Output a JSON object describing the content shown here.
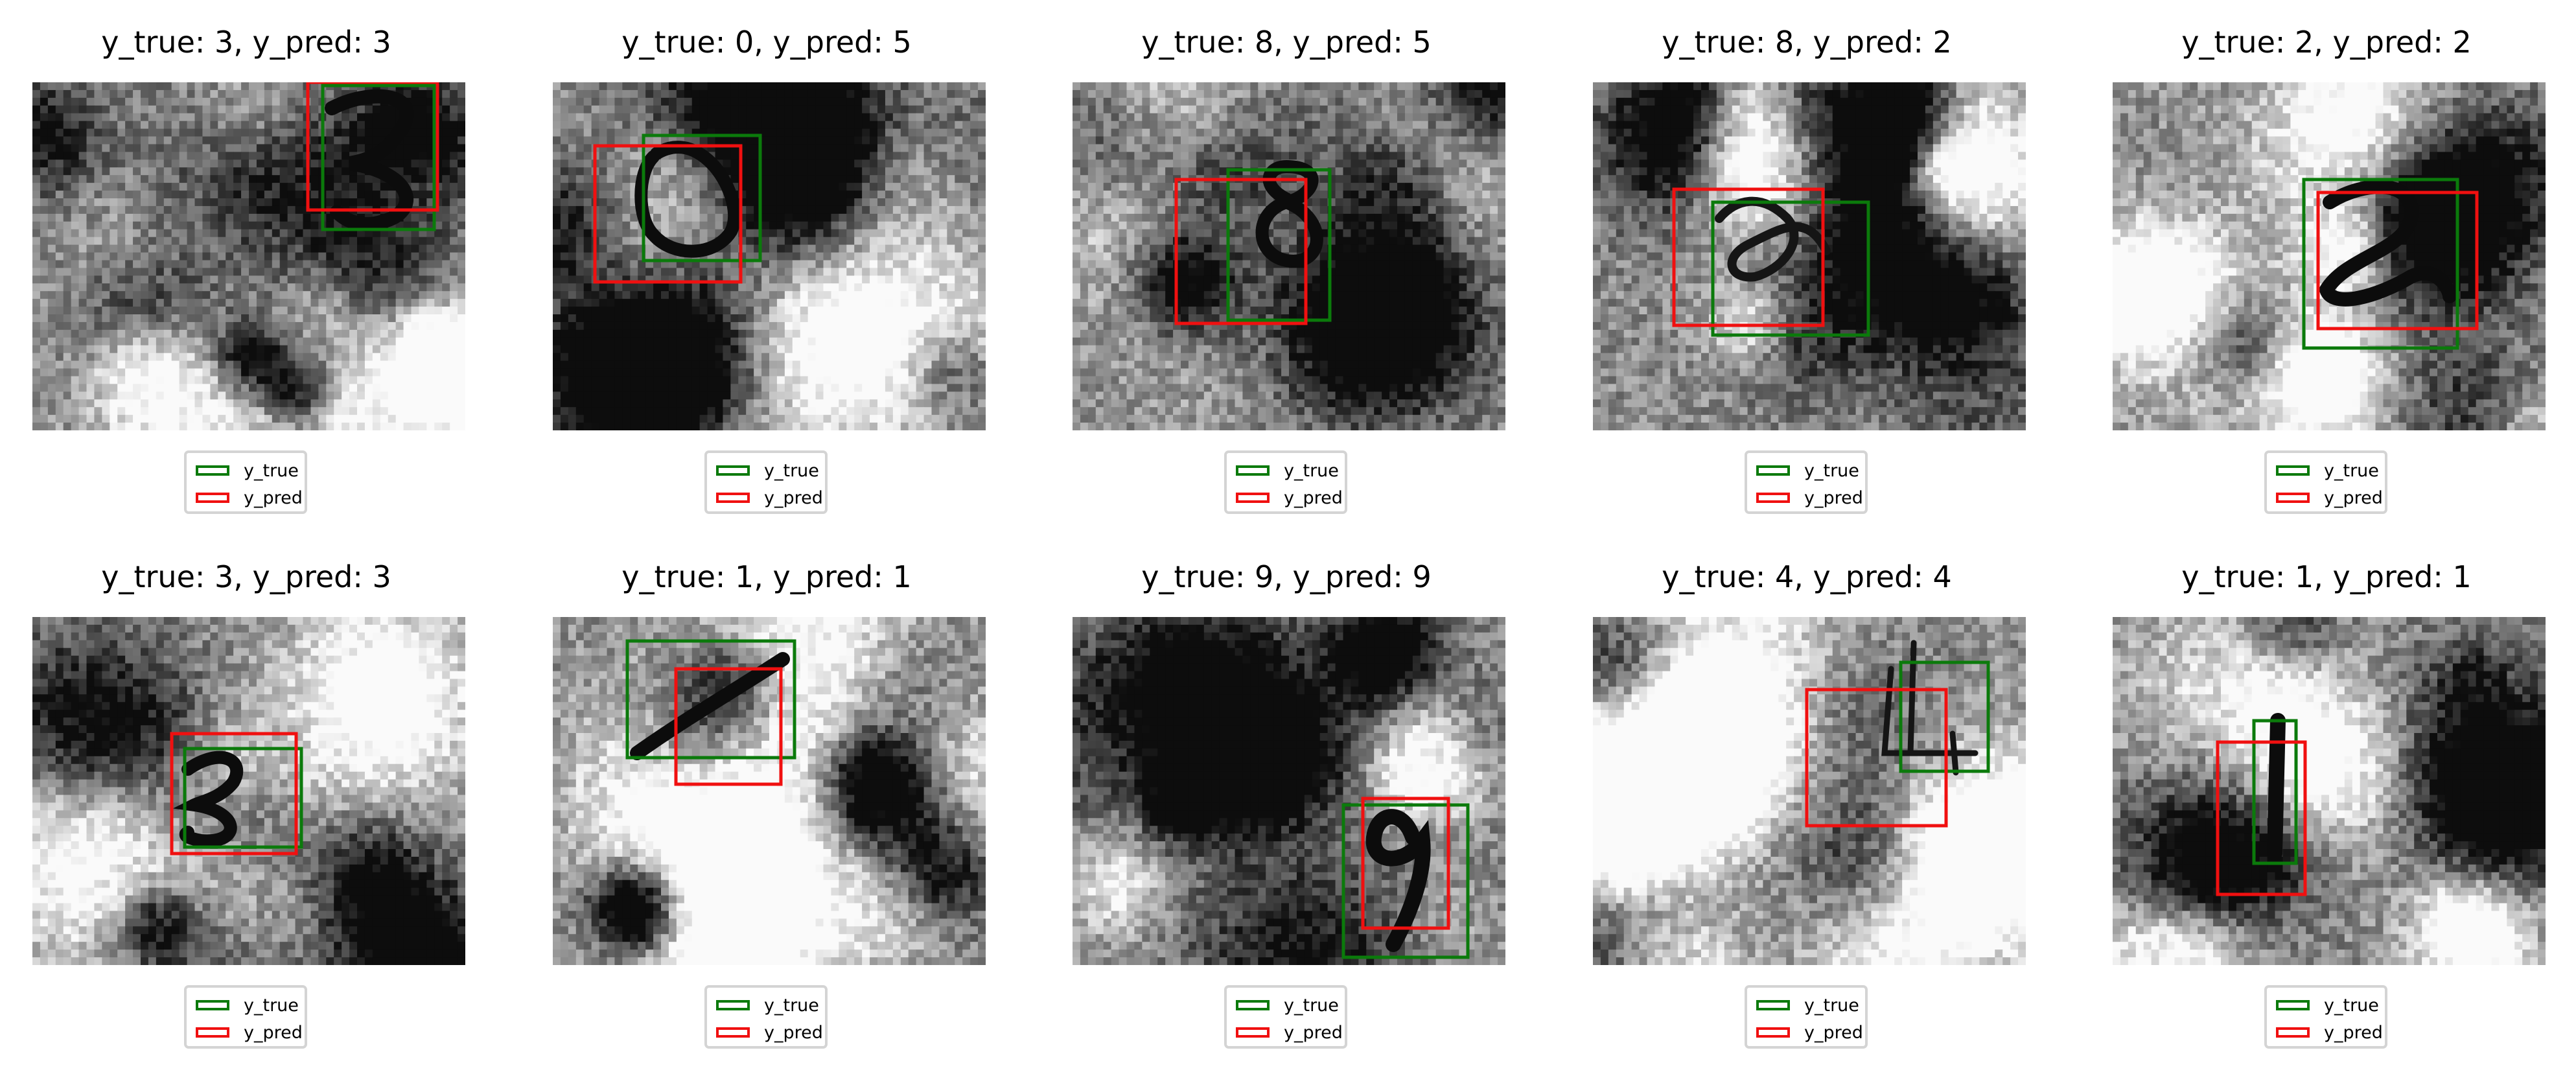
{
  "figure": {
    "colors": {
      "true_box": "#0b7a0b",
      "pred_box": "#f01010",
      "legend_border": "#d4d4d4"
    },
    "legend": {
      "true_label": "y_true",
      "pred_label": "y_pred"
    },
    "image_grid": {
      "rows": 2,
      "cols": 5
    },
    "panels": [
      {
        "title": "y_true: 3, y_pred: 3",
        "digit_shown": "3"
      },
      {
        "title": "y_true: 0, y_pred: 5",
        "digit_shown": "0"
      },
      {
        "title": "y_true: 8, y_pred: 5",
        "digit_shown": "8"
      },
      {
        "title": "y_true: 8, y_pred: 2",
        "digit_shown": "8"
      },
      {
        "title": "y_true: 2, y_pred: 2",
        "digit_shown": "2"
      },
      {
        "title": "y_true: 3, y_pred: 3",
        "digit_shown": "3"
      },
      {
        "title": "y_true: 1, y_pred: 1",
        "digit_shown": "1"
      },
      {
        "title": "y_true: 9, y_pred: 9",
        "digit_shown": "9"
      },
      {
        "title": "y_true: 4, y_pred: 4",
        "digit_shown": "4"
      },
      {
        "title": "y_true: 1, y_pred: 1",
        "digit_shown": "1"
      }
    ]
  }
}
